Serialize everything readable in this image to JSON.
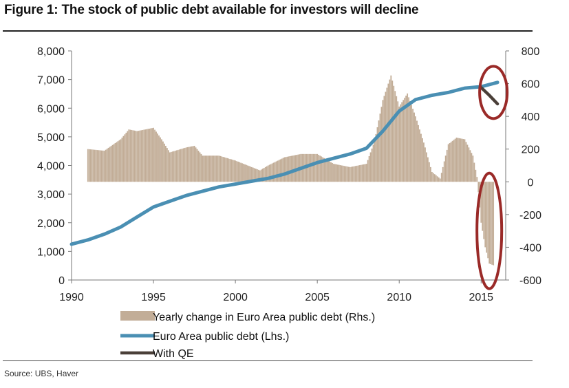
{
  "title": "Figure 1: The stock of public debt available for investors will decline",
  "source": "Source:  UBS, Haver",
  "chart_data": {
    "type": "bar+line",
    "title": "Figure 1: The stock of public debt available for investors will decline",
    "xlabel": "",
    "ylabel_left": "",
    "ylabel_right": "",
    "xlim": [
      1990,
      2016.5
    ],
    "ylim_left": [
      0,
      8000
    ],
    "ylim_right": [
      -600,
      800
    ],
    "x_ticks": [
      "1990",
      "1995",
      "2000",
      "2005",
      "2010",
      "2015"
    ],
    "y_ticks_left": [
      "8,000",
      "7,000",
      "6,000",
      "5,000",
      "4,000",
      "3,000",
      "2,000",
      "1,000",
      "0"
    ],
    "y_ticks_right": [
      "800",
      "600",
      "400",
      "200",
      "0",
      "-200",
      "-400",
      "-600"
    ],
    "grid": false,
    "legend_position": "bottom",
    "colors": {
      "bars": "#c2ad97",
      "line": "#4a8fb3",
      "qe": "#4a3f38",
      "circle": "#9a2a28"
    },
    "series": [
      {
        "name": "Yearly change in Euro Area public debt (Rhs.)",
        "kind": "bar",
        "axis": "right",
        "x": [
          1991.0,
          1992.0,
          1993.0,
          1993.5,
          1994.0,
          1995.0,
          1995.5,
          1996.0,
          1997.0,
          1997.5,
          1998.0,
          1999.0,
          2000.0,
          2001.0,
          2001.5,
          2002.0,
          2003.0,
          2004.0,
          2005.0,
          2006.0,
          2007.0,
          2007.5,
          2008.0,
          2008.5,
          2009.0,
          2009.5,
          2010.0,
          2010.5,
          2011.0,
          2011.5,
          2012.0,
          2012.5,
          2013.0,
          2013.5,
          2014.0,
          2014.5,
          2014.75,
          2015.0,
          2015.25,
          2015.5,
          2015.75
        ],
        "values": [
          200,
          190,
          260,
          320,
          310,
          330,
          260,
          180,
          210,
          220,
          160,
          160,
          130,
          90,
          70,
          100,
          150,
          170,
          170,
          110,
          90,
          100,
          110,
          250,
          500,
          650,
          460,
          540,
          400,
          240,
          60,
          20,
          230,
          270,
          260,
          160,
          30,
          -250,
          -400,
          -500,
          -510
        ]
      },
      {
        "name": "Euro Area public debt (Lhs.)",
        "kind": "line",
        "axis": "left",
        "x": [
          1990,
          1991,
          1992,
          1993,
          1994,
          1995,
          1996,
          1997,
          1998,
          1999,
          2000,
          2001,
          2002,
          2003,
          2004,
          2005,
          2006,
          2007,
          2008,
          2009,
          2010,
          2011,
          2012,
          2013,
          2014,
          2015,
          2016
        ],
        "values": [
          1250,
          1400,
          1600,
          1850,
          2200,
          2550,
          2750,
          2950,
          3100,
          3250,
          3350,
          3450,
          3550,
          3700,
          3900,
          4100,
          4250,
          4400,
          4600,
          5200,
          5900,
          6300,
          6450,
          6550,
          6700,
          6750,
          6900
        ]
      },
      {
        "name": "With QE",
        "kind": "line",
        "axis": "left",
        "x": [
          2015,
          2015.5,
          2016
        ],
        "values": [
          6720,
          6450,
          6150
        ]
      }
    ],
    "annotations": [
      "circle around 2015-2016 line divergence",
      "circle around 2015-2016 negative bars"
    ]
  },
  "legend": {
    "bars": "Yearly change in Euro Area public debt (Rhs.)",
    "line": "Euro Area public debt (Lhs.)",
    "qe": "With QE"
  }
}
